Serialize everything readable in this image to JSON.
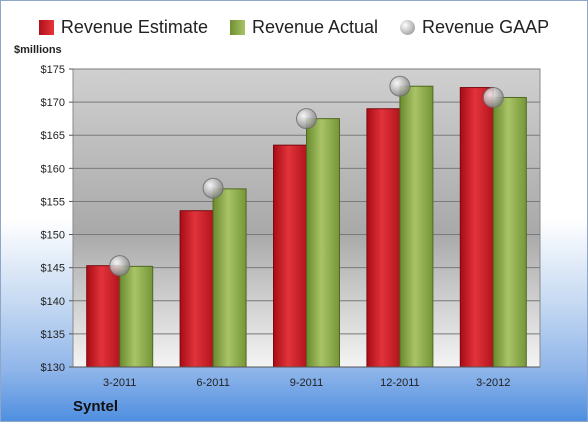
{
  "chart_data": {
    "type": "bar",
    "title": "",
    "xlabel": "",
    "ylabel": "$millions",
    "categories": [
      "3-2011",
      "6-2011",
      "9-2011",
      "12-2011",
      "3-2012"
    ],
    "series": [
      {
        "name": "Revenue Estimate",
        "type": "bar",
        "color": "#d0202a",
        "values": [
          145.3,
          153.6,
          163.5,
          169.0,
          172.2
        ]
      },
      {
        "name": "Revenue Actual",
        "type": "bar",
        "color": "#93b24a",
        "values": [
          145.2,
          156.9,
          167.5,
          172.4,
          170.7
        ]
      },
      {
        "name": "Revenue GAAP",
        "type": "marker",
        "color": "#a9a9a9",
        "values": [
          145.3,
          157.0,
          167.5,
          172.4,
          170.7
        ]
      }
    ],
    "ylim": [
      130,
      175
    ],
    "yticks": [
      130,
      135,
      140,
      145,
      150,
      155,
      160,
      165,
      170,
      175
    ],
    "ytick_labels": [
      "$130",
      "$135",
      "$140",
      "$145",
      "$150",
      "$155",
      "$160",
      "$165",
      "$170",
      "$175"
    ],
    "grid": true,
    "legend_position": "top"
  },
  "company": "Syntel"
}
